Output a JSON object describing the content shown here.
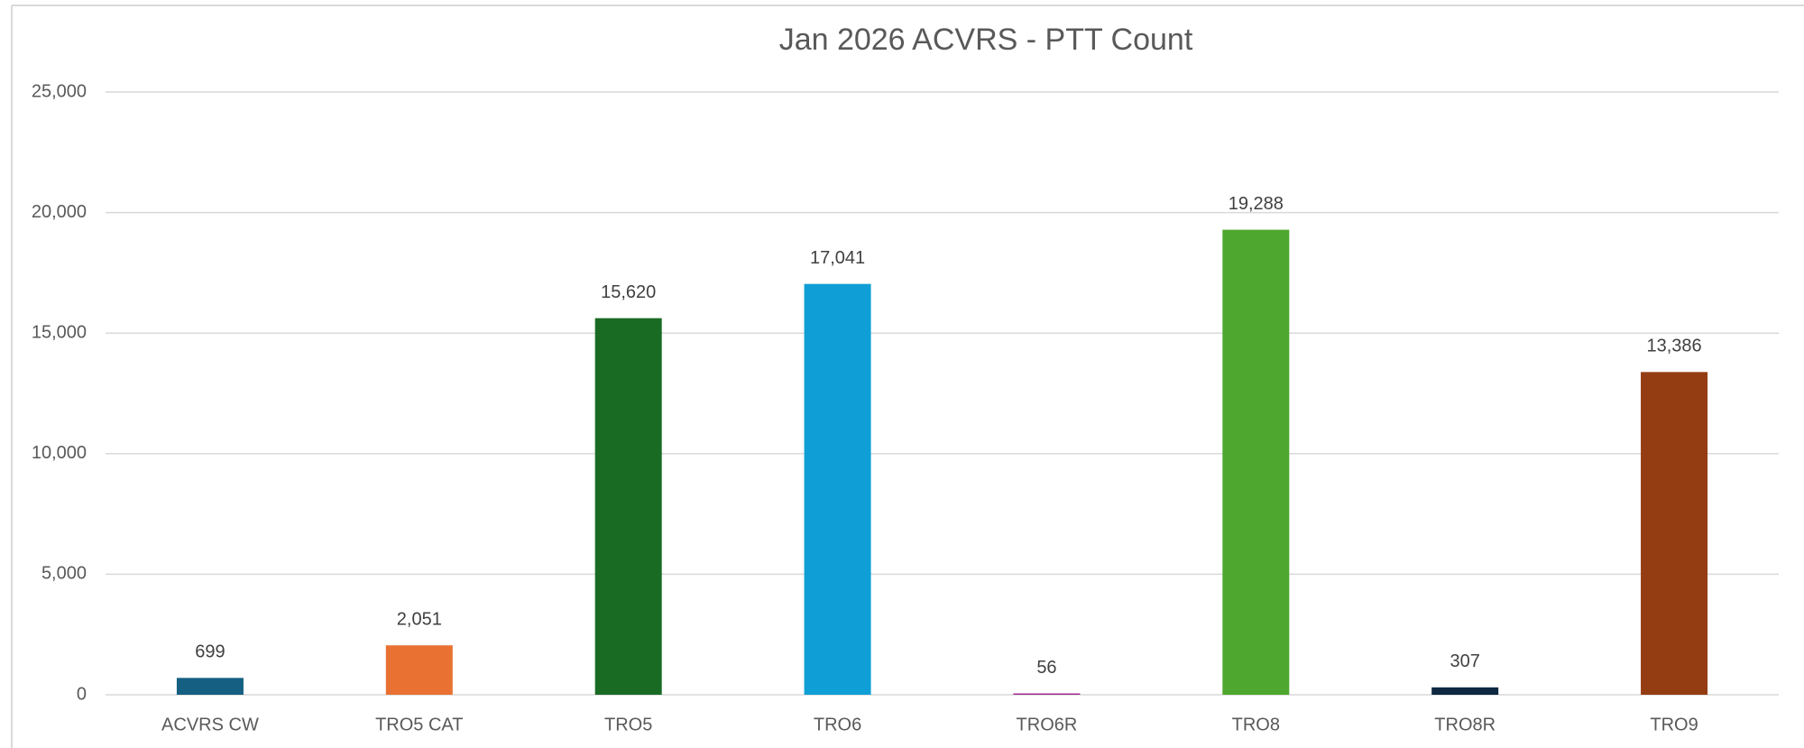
{
  "chart_data": {
    "type": "bar",
    "title": "Jan 2026 ACVRS - PTT Count",
    "categories": [
      "ACVRS CW",
      "TRO5 CAT",
      "TRO5",
      "TRO6",
      "TRO6R",
      "TRO8",
      "TRO8R",
      "TRO9"
    ],
    "values": [
      699,
      2051,
      15620,
      17041,
      56,
      19288,
      307,
      13386
    ],
    "value_labels": [
      "699",
      "2,051",
      "15,620",
      "17,041",
      "56",
      "19,288",
      "307",
      "13,386"
    ],
    "colors": [
      "#156082",
      "#e97132",
      "#196b24",
      "#0f9ed5",
      "#a02b93",
      "#4ea72e",
      "#0e2841",
      "#943d13"
    ],
    "ylim": [
      0,
      25000
    ],
    "yticks": [
      0,
      {
        "value": 5000,
        "label": "5,000"
      },
      {
        "value": 10000,
        "label": "10,000"
      },
      {
        "value": 15000,
        "label": "15,000"
      },
      {
        "value": 20000,
        "label": "20,000"
      },
      {
        "value": 25000,
        "label": "25,000"
      }
    ],
    "grid": true
  }
}
